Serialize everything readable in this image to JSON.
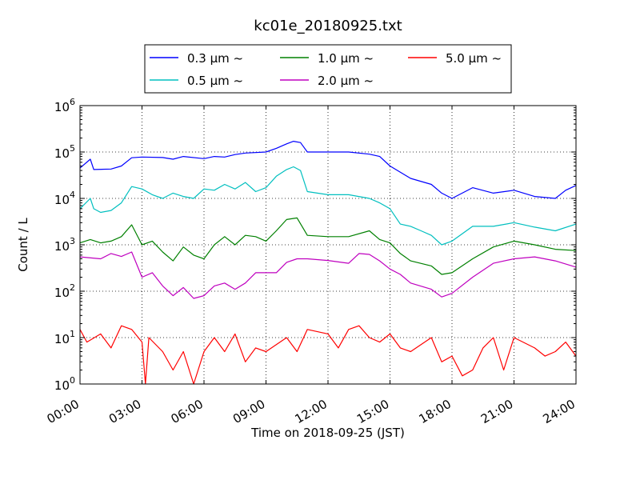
{
  "chart_data": {
    "type": "line",
    "title": "kc01e_20180925.txt",
    "xlabel": "Time on 2018-09-25 (JST)",
    "ylabel": "Count / L",
    "y_scale": "log",
    "ylim": [
      1,
      1000000
    ],
    "xlim": [
      "00:00",
      "24:00"
    ],
    "x_ticks": [
      "00:00",
      "03:00",
      "06:00",
      "09:00",
      "12:00",
      "15:00",
      "18:00",
      "21:00",
      "24:00"
    ],
    "y_ticks": [
      {
        "value": 1,
        "base": "10",
        "exp": "0"
      },
      {
        "value": 10,
        "base": "10",
        "exp": "1"
      },
      {
        "value": 100,
        "base": "10",
        "exp": "2"
      },
      {
        "value": 1000,
        "base": "10",
        "exp": "3"
      },
      {
        "value": 10000,
        "base": "10",
        "exp": "4"
      },
      {
        "value": 100000,
        "base": "10",
        "exp": "5"
      },
      {
        "value": 1000000,
        "base": "10",
        "exp": "6"
      }
    ],
    "grid": true,
    "legend_position": "top-center",
    "series": [
      {
        "name": "0.3 μm ~",
        "color": "#0000ff",
        "points": [
          [
            "00:00",
            45000
          ],
          [
            "00:30",
            70000
          ],
          [
            "00:40",
            42000
          ],
          [
            "01:30",
            43000
          ],
          [
            "02:00",
            50000
          ],
          [
            "02:30",
            75000
          ],
          [
            "03:00",
            78000
          ],
          [
            "04:00",
            76000
          ],
          [
            "04:30",
            70000
          ],
          [
            "05:00",
            80000
          ],
          [
            "06:00",
            72000
          ],
          [
            "06:30",
            80000
          ],
          [
            "07:00",
            78000
          ],
          [
            "07:30",
            88000
          ],
          [
            "08:00",
            95000
          ],
          [
            "09:00",
            100000
          ],
          [
            "09:30",
            120000
          ],
          [
            "10:00",
            150000
          ],
          [
            "10:20",
            170000
          ],
          [
            "10:40",
            160000
          ],
          [
            "11:00",
            100000
          ],
          [
            "12:00",
            100000
          ],
          [
            "13:00",
            100000
          ],
          [
            "14:00",
            90000
          ],
          [
            "14:30",
            80000
          ],
          [
            "15:00",
            50000
          ],
          [
            "16:00",
            27000
          ],
          [
            "17:00",
            20000
          ],
          [
            "17:30",
            13000
          ],
          [
            "18:00",
            10000
          ],
          [
            "19:00",
            17000
          ],
          [
            "20:00",
            13000
          ],
          [
            "21:00",
            15000
          ],
          [
            "22:00",
            11000
          ],
          [
            "23:00",
            10000
          ],
          [
            "23:30",
            15000
          ],
          [
            "24:00",
            19000
          ]
        ]
      },
      {
        "name": "0.5 μm ~",
        "color": "#00bfbf",
        "points": [
          [
            "00:00",
            6000
          ],
          [
            "00:30",
            10000
          ],
          [
            "00:40",
            6000
          ],
          [
            "01:00",
            5000
          ],
          [
            "01:30",
            5500
          ],
          [
            "02:00",
            8000
          ],
          [
            "02:30",
            18000
          ],
          [
            "03:00",
            16000
          ],
          [
            "03:30",
            12000
          ],
          [
            "04:00",
            10000
          ],
          [
            "04:30",
            13000
          ],
          [
            "05:00",
            11000
          ],
          [
            "05:30",
            10000
          ],
          [
            "06:00",
            16000
          ],
          [
            "06:30",
            15000
          ],
          [
            "07:00",
            20000
          ],
          [
            "07:30",
            16000
          ],
          [
            "08:00",
            22000
          ],
          [
            "08:30",
            14000
          ],
          [
            "09:00",
            17000
          ],
          [
            "09:30",
            30000
          ],
          [
            "10:00",
            42000
          ],
          [
            "10:20",
            48000
          ],
          [
            "10:40",
            40000
          ],
          [
            "11:00",
            14000
          ],
          [
            "12:00",
            12000
          ],
          [
            "13:00",
            12000
          ],
          [
            "14:00",
            10000
          ],
          [
            "14:30",
            8000
          ],
          [
            "15:00",
            6000
          ],
          [
            "15:30",
            2800
          ],
          [
            "16:00",
            2500
          ],
          [
            "16:30",
            2000
          ],
          [
            "17:00",
            1600
          ],
          [
            "17:30",
            1000
          ],
          [
            "18:00",
            1200
          ],
          [
            "19:00",
            2500
          ],
          [
            "20:00",
            2500
          ],
          [
            "21:00",
            3000
          ],
          [
            "22:00",
            2400
          ],
          [
            "23:00",
            2000
          ],
          [
            "24:00",
            2800
          ]
        ]
      },
      {
        "name": "1.0 μm ~",
        "color": "#008000",
        "points": [
          [
            "00:00",
            1100
          ],
          [
            "00:30",
            1300
          ],
          [
            "01:00",
            1100
          ],
          [
            "01:30",
            1200
          ],
          [
            "02:00",
            1500
          ],
          [
            "02:30",
            2700
          ],
          [
            "03:00",
            1000
          ],
          [
            "03:30",
            1200
          ],
          [
            "04:00",
            700
          ],
          [
            "04:30",
            450
          ],
          [
            "05:00",
            900
          ],
          [
            "05:30",
            600
          ],
          [
            "06:00",
            500
          ],
          [
            "06:30",
            1000
          ],
          [
            "07:00",
            1500
          ],
          [
            "07:30",
            1000
          ],
          [
            "08:00",
            1600
          ],
          [
            "08:30",
            1500
          ],
          [
            "09:00",
            1200
          ],
          [
            "09:30",
            2000
          ],
          [
            "10:00",
            3500
          ],
          [
            "10:30",
            3800
          ],
          [
            "11:00",
            1600
          ],
          [
            "12:00",
            1500
          ],
          [
            "13:00",
            1500
          ],
          [
            "14:00",
            2000
          ],
          [
            "14:30",
            1300
          ],
          [
            "15:00",
            1100
          ],
          [
            "15:30",
            650
          ],
          [
            "16:00",
            450
          ],
          [
            "17:00",
            350
          ],
          [
            "17:30",
            230
          ],
          [
            "18:00",
            250
          ],
          [
            "19:00",
            500
          ],
          [
            "20:00",
            900
          ],
          [
            "21:00",
            1200
          ],
          [
            "22:00",
            1000
          ],
          [
            "23:00",
            800
          ],
          [
            "24:00",
            750
          ]
        ]
      },
      {
        "name": "2.0 μm ~",
        "color": "#bf00bf",
        "points": [
          [
            "00:00",
            550
          ],
          [
            "01:00",
            500
          ],
          [
            "01:30",
            650
          ],
          [
            "02:00",
            560
          ],
          [
            "02:30",
            700
          ],
          [
            "03:00",
            200
          ],
          [
            "03:30",
            250
          ],
          [
            "04:00",
            130
          ],
          [
            "04:30",
            80
          ],
          [
            "05:00",
            120
          ],
          [
            "05:30",
            70
          ],
          [
            "06:00",
            80
          ],
          [
            "06:30",
            130
          ],
          [
            "07:00",
            150
          ],
          [
            "07:30",
            110
          ],
          [
            "08:00",
            150
          ],
          [
            "08:30",
            250
          ],
          [
            "09:00",
            250
          ],
          [
            "09:30",
            250
          ],
          [
            "10:00",
            420
          ],
          [
            "10:30",
            500
          ],
          [
            "11:00",
            500
          ],
          [
            "12:00",
            460
          ],
          [
            "13:00",
            400
          ],
          [
            "13:30",
            650
          ],
          [
            "14:00",
            620
          ],
          [
            "14:30",
            450
          ],
          [
            "15:00",
            300
          ],
          [
            "15:30",
            230
          ],
          [
            "16:00",
            150
          ],
          [
            "17:00",
            110
          ],
          [
            "17:30",
            75
          ],
          [
            "18:00",
            90
          ],
          [
            "19:00",
            200
          ],
          [
            "20:00",
            400
          ],
          [
            "21:00",
            500
          ],
          [
            "22:00",
            550
          ],
          [
            "23:00",
            450
          ],
          [
            "24:00",
            330
          ]
        ]
      },
      {
        "name": "5.0 μm ~",
        "color": "#ff0000",
        "points": [
          [
            "00:00",
            15
          ],
          [
            "00:20",
            8
          ],
          [
            "01:00",
            12
          ],
          [
            "01:30",
            6
          ],
          [
            "02:00",
            18
          ],
          [
            "02:30",
            15
          ],
          [
            "03:00",
            8
          ],
          [
            "03:10",
            1
          ],
          [
            "03:20",
            10
          ],
          [
            "04:00",
            5
          ],
          [
            "04:30",
            2
          ],
          [
            "05:00",
            5
          ],
          [
            "05:30",
            1
          ],
          [
            "06:00",
            5
          ],
          [
            "06:30",
            10
          ],
          [
            "07:00",
            5
          ],
          [
            "07:30",
            12
          ],
          [
            "08:00",
            3
          ],
          [
            "08:30",
            6
          ],
          [
            "09:00",
            5
          ],
          [
            "10:00",
            10
          ],
          [
            "10:30",
            5
          ],
          [
            "11:00",
            15
          ],
          [
            "12:00",
            12
          ],
          [
            "12:30",
            6
          ],
          [
            "13:00",
            15
          ],
          [
            "13:30",
            18
          ],
          [
            "14:00",
            10
          ],
          [
            "14:30",
            8
          ],
          [
            "15:00",
            12
          ],
          [
            "15:30",
            6
          ],
          [
            "16:00",
            5
          ],
          [
            "17:00",
            10
          ],
          [
            "17:30",
            3
          ],
          [
            "18:00",
            4
          ],
          [
            "18:30",
            1.5
          ],
          [
            "19:00",
            2
          ],
          [
            "19:30",
            6
          ],
          [
            "20:00",
            10
          ],
          [
            "20:30",
            2
          ],
          [
            "21:00",
            10
          ],
          [
            "22:00",
            6
          ],
          [
            "22:30",
            4
          ],
          [
            "23:00",
            5
          ],
          [
            "23:30",
            8
          ],
          [
            "24:00",
            4
          ]
        ]
      }
    ]
  }
}
